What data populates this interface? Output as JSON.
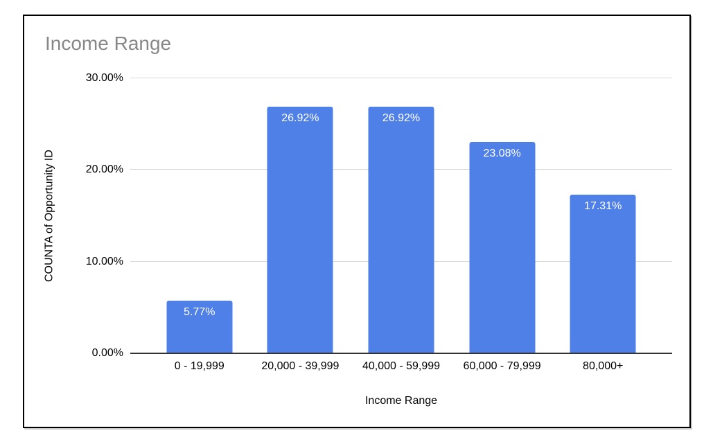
{
  "chart_data": {
    "type": "bar",
    "title": "Income Range",
    "xlabel": "Income Range",
    "ylabel": "COUNTA of Opportunity ID",
    "categories": [
      "0 - 19,999",
      "20,000 - 39,999",
      "40,000 - 59,999",
      "60,000 - 79,999",
      "80,000+"
    ],
    "values": [
      5.77,
      26.92,
      26.92,
      23.08,
      17.31
    ],
    "data_labels": [
      "5.77%",
      "26.92%",
      "26.92%",
      "23.08%",
      "17.31%"
    ],
    "ylim": [
      0,
      30
    ],
    "yticks": [
      {
        "value": 0,
        "label": "0.00%"
      },
      {
        "value": 10,
        "label": "10.00%"
      },
      {
        "value": 20,
        "label": "20.00%"
      },
      {
        "value": 30,
        "label": "30.00%"
      }
    ],
    "grid": true,
    "legend": "none",
    "colors": {
      "bar": "#4e80e8",
      "data_label": "#ffffff",
      "title": "#878787",
      "axis_text": "#000000",
      "gridline": "#dadada",
      "baseline": "#333333"
    }
  }
}
